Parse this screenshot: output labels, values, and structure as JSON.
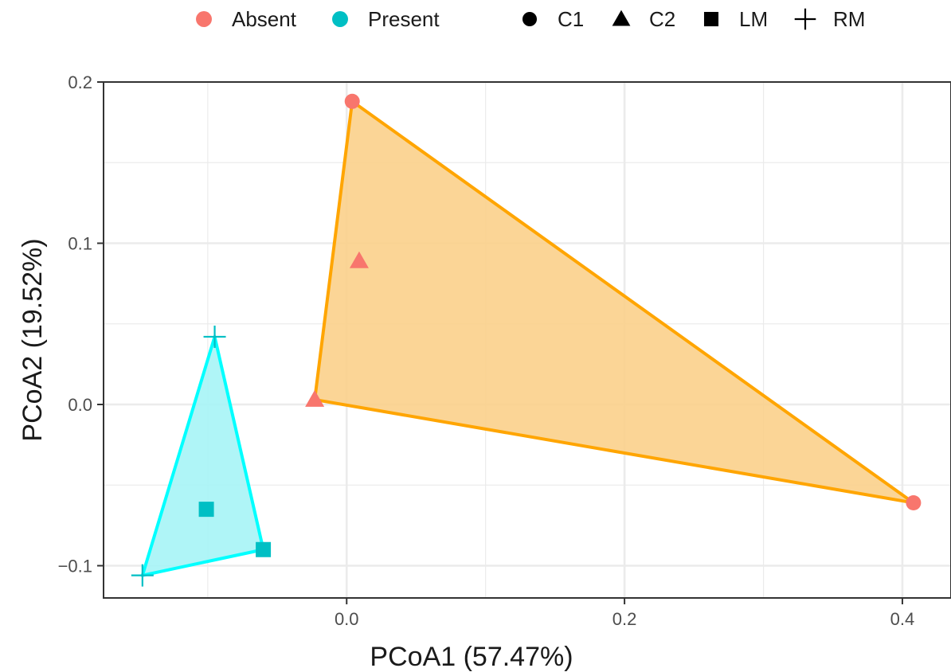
{
  "chart_data": {
    "type": "scatter",
    "title": "",
    "xlabel": "PCoA1 (57.47%)",
    "ylabel": "PCoA2 (19.52%)",
    "xlim": [
      -0.175,
      0.435
    ],
    "ylim": [
      -0.12,
      0.2
    ],
    "x_ticks": [
      0.0,
      0.2,
      0.4
    ],
    "x_tick_labels": [
      "0.0",
      "0.2",
      "0.4"
    ],
    "y_ticks": [
      -0.1,
      0.0,
      0.1,
      0.2
    ],
    "y_tick_labels": [
      "−0.1",
      "0.0",
      "0.1",
      "0.2"
    ],
    "grid": true,
    "legend_position": "top",
    "color_legend": [
      {
        "label": "Absent",
        "color": "#F8766D"
      },
      {
        "label": "Present",
        "color": "#00BFC4"
      }
    ],
    "shape_legend": [
      {
        "label": "C1",
        "shape": "circle"
      },
      {
        "label": "C2",
        "shape": "triangle"
      },
      {
        "label": "LM",
        "shape": "square"
      },
      {
        "label": "RM",
        "shape": "plus"
      }
    ],
    "series": [
      {
        "name": "Absent",
        "color": "#F8766D",
        "points": [
          {
            "x": 0.004,
            "y": 0.188,
            "shape": "circle"
          },
          {
            "x": 0.408,
            "y": -0.061,
            "shape": "circle"
          },
          {
            "x": 0.009,
            "y": 0.089,
            "shape": "triangle"
          },
          {
            "x": -0.023,
            "y": 0.003,
            "shape": "triangle"
          }
        ]
      },
      {
        "name": "Present",
        "color": "#00BFC4",
        "points": [
          {
            "x": -0.101,
            "y": -0.065,
            "shape": "square"
          },
          {
            "x": -0.06,
            "y": -0.09,
            "shape": "square"
          },
          {
            "x": -0.095,
            "y": 0.042,
            "shape": "plus"
          },
          {
            "x": -0.147,
            "y": -0.106,
            "shape": "plus"
          }
        ]
      }
    ],
    "hulls": [
      {
        "group": "Absent",
        "fill": "#FBD08B",
        "stroke": "#FFA500",
        "vertices": [
          [
            0.004,
            0.188
          ],
          [
            0.408,
            -0.061
          ],
          [
            -0.023,
            0.003
          ]
        ]
      },
      {
        "group": "Present",
        "fill": "#A6F4F6",
        "stroke": "#00FFFF",
        "vertices": [
          [
            -0.095,
            0.042
          ],
          [
            -0.06,
            -0.09
          ],
          [
            -0.147,
            -0.106
          ]
        ]
      }
    ]
  }
}
